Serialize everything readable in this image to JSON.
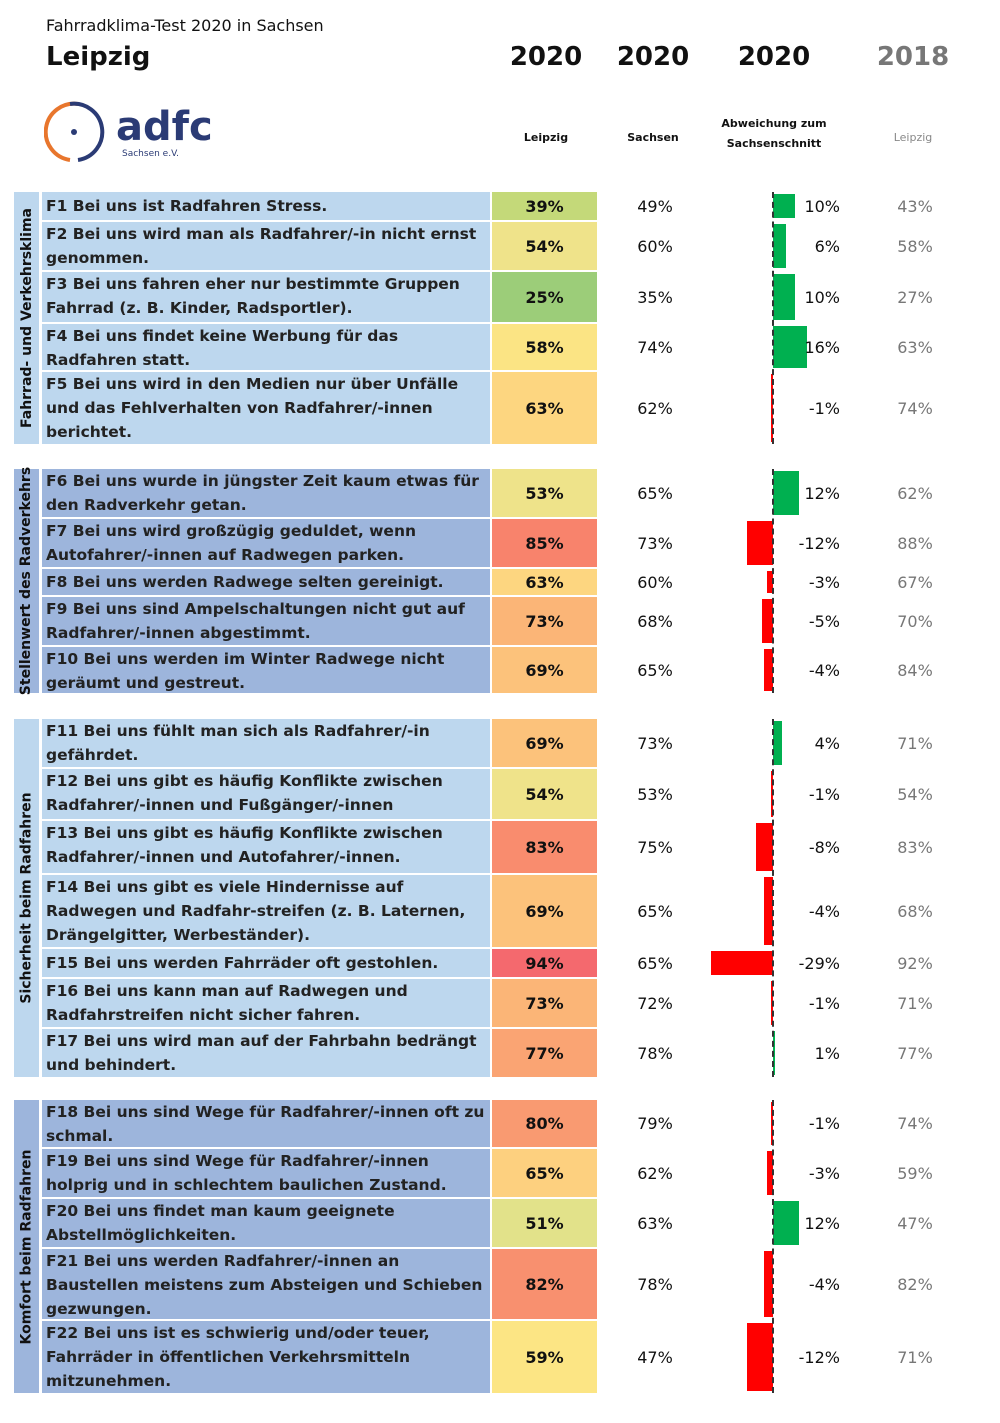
{
  "header": {
    "subtitle": "Fahrradklima-Test 2020 in Sachsen",
    "city": "Leipzig",
    "columns": [
      {
        "year": "2020",
        "label": "Leipzig"
      },
      {
        "year": "2020",
        "label": "Sachsen"
      },
      {
        "year": "2020",
        "label": "Abweichung zum Sachsenschnitt"
      },
      {
        "year": "2018",
        "label": "Leipzig"
      }
    ],
    "logo": {
      "text": "adfc",
      "subtext": "Sachsen e.V."
    }
  },
  "colors": {
    "positive": "#00b050",
    "negative": "#ff0000",
    "group_light": "#bdd7ee",
    "group_dark": "#9db5dc"
  },
  "chart_data": {
    "type": "table",
    "title": "Fahrradklima-Test 2020 in Sachsen – Leipzig",
    "groups": [
      {
        "name": "Fahrrad- und Verkehrsklima",
        "shade": "light",
        "rows": [
          {
            "q": "F1 Bei uns ist Radfahren Stress.",
            "leipzig": "39%",
            "color": "#c4d979",
            "sachsen": "49%",
            "dev": 10,
            "dev_label": "10%",
            "y2018": "43%"
          },
          {
            "q": "F2 Bei uns wird man als Radfahrer/-in nicht ernst genommen.",
            "leipzig": "54%",
            "color": "#efe38a",
            "sachsen": "60%",
            "dev": 6,
            "dev_label": "6%",
            "y2018": "58%"
          },
          {
            "q": "F3 Bei uns fahren eher nur bestimmte Gruppen Fahrrad (z. B. Kinder, Radsportler).",
            "leipzig": "25%",
            "color": "#9ccd79",
            "sachsen": "35%",
            "dev": 10,
            "dev_label": "10%",
            "y2018": "27%"
          },
          {
            "q": "F4 Bei uns findet keine Werbung für das Radfahren statt.",
            "leipzig": "58%",
            "color": "#fbe484",
            "sachsen": "74%",
            "dev": 16,
            "dev_label": "16%",
            "y2018": "63%"
          },
          {
            "q": "F5 Bei uns wird in den Medien nur über Unfälle und das Fehlverhalten von Radfahrer/-innen berichtet.",
            "leipzig": "63%",
            "color": "#fdd680",
            "sachsen": "62%",
            "dev": -1,
            "dev_label": "-1%",
            "y2018": "74%"
          }
        ]
      },
      {
        "name": "Stellenwert des Radverkehrs",
        "shade": "dark",
        "rows": [
          {
            "q": "F6 Bei uns wurde in jüngster Zeit kaum etwas für den Radverkehr getan.",
            "leipzig": "53%",
            "color": "#eee38a",
            "sachsen": "65%",
            "dev": 12,
            "dev_label": "12%",
            "y2018": "62%"
          },
          {
            "q": "F7 Bei uns wird großzügig geduldet, wenn Autofahrer/-innen auf Radwegen parken.",
            "leipzig": "85%",
            "color": "#f8836c",
            "sachsen": "73%",
            "dev": -12,
            "dev_label": "-12%",
            "y2018": "88%"
          },
          {
            "q": "F8 Bei uns werden Radwege selten gereinigt.",
            "leipzig": "63%",
            "color": "#fdd680",
            "sachsen": "60%",
            "dev": -3,
            "dev_label": "-3%",
            "y2018": "67%"
          },
          {
            "q": "F9 Bei uns sind Ampelschaltungen nicht gut auf Radfahrer/-innen abgestimmt.",
            "leipzig": "73%",
            "color": "#fbb577",
            "sachsen": "68%",
            "dev": -5,
            "dev_label": "-5%",
            "y2018": "70%"
          },
          {
            "q": "F10 Bei uns werden im Winter Radwege nicht geräumt und gestreut.",
            "leipzig": "69%",
            "color": "#fcc27b",
            "sachsen": "65%",
            "dev": -4,
            "dev_label": "-4%",
            "y2018": "84%"
          }
        ]
      },
      {
        "name": "Sicherheit beim Radfahren",
        "shade": "light",
        "rows": [
          {
            "q": "F11 Bei uns fühlt man sich als Radfahrer/-in gefährdet.",
            "leipzig": "69%",
            "color": "#fcc27b",
            "sachsen": "73%",
            "dev": 4,
            "dev_label": "4%",
            "y2018": "71%"
          },
          {
            "q": "F12 Bei uns gibt es häufig Konflikte zwischen Radfahrer/-innen und Fußgänger/-innen",
            "leipzig": "54%",
            "color": "#efe38a",
            "sachsen": "53%",
            "dev": -1,
            "dev_label": "-1%",
            "y2018": "54%"
          },
          {
            "q": "F13 Bei uns gibt es häufig Konflikte zwischen Radfahrer/-innen und Autofahrer/-innen.",
            "leipzig": "83%",
            "color": "#f98c6e",
            "sachsen": "75%",
            "dev": -8,
            "dev_label": "-8%",
            "y2018": "83%"
          },
          {
            "q": "F14 Bei uns gibt es viele Hindernisse auf Radwegen und Radfahr-streifen (z. B. Laternen, Drängelgitter, Werbeständer).",
            "leipzig": "69%",
            "color": "#fcc27b",
            "sachsen": "65%",
            "dev": -4,
            "dev_label": "-4%",
            "y2018": "68%"
          },
          {
            "q": "F15 Bei uns werden Fahrräder oft gestohlen.",
            "leipzig": "94%",
            "color": "#f4696e",
            "sachsen": "65%",
            "dev": -29,
            "dev_label": "-29%",
            "y2018": "92%"
          },
          {
            "q": "F16 Bei uns kann man auf Radwegen und Radfahrstreifen nicht sicher fahren.",
            "leipzig": "73%",
            "color": "#fbb577",
            "sachsen": "72%",
            "dev": -1,
            "dev_label": "-1%",
            "y2018": "71%"
          },
          {
            "q": "F17 Bei uns wird man auf der Fahrbahn bedrängt und behindert.",
            "leipzig": "77%",
            "color": "#faa473",
            "sachsen": "78%",
            "dev": 1,
            "dev_label": "1%",
            "y2018": "77%"
          }
        ]
      },
      {
        "name": "Komfort beim Radfahren",
        "shade": "dark",
        "rows": [
          {
            "q": "F18 Bei uns sind Wege für Radfahrer/-innen oft zu schmal.",
            "leipzig": "80%",
            "color": "#f99a71",
            "sachsen": "79%",
            "dev": -1,
            "dev_label": "-1%",
            "y2018": "74%"
          },
          {
            "q": "F19 Bei uns sind Wege für Radfahrer/-innen holprig und in schlechtem baulichen Zustand.",
            "leipzig": "65%",
            "color": "#fdd07f",
            "sachsen": "62%",
            "dev": -3,
            "dev_label": "-3%",
            "y2018": "59%"
          },
          {
            "q": "F20 Bei uns findet man kaum geeignete Abstellmöglichkeiten.",
            "leipzig": "51%",
            "color": "#e2e28a",
            "sachsen": "63%",
            "dev": 12,
            "dev_label": "12%",
            "y2018": "47%"
          },
          {
            "q": "F21 Bei uns werden Radfahrer/-innen an Baustellen meistens zum Absteigen und Schieben gezwungen.",
            "leipzig": "82%",
            "color": "#f8906f",
            "sachsen": "78%",
            "dev": -4,
            "dev_label": "-4%",
            "y2018": "82%"
          },
          {
            "q": "F22 Bei uns ist es schwierig und/oder teuer, Fahrräder in öffentlichen Verkehrsmitteln mitzunehmen.",
            "leipzig": "59%",
            "color": "#fce584",
            "sachsen": "47%",
            "dev": -12,
            "dev_label": "-12%",
            "y2018": "71%"
          }
        ]
      }
    ]
  }
}
